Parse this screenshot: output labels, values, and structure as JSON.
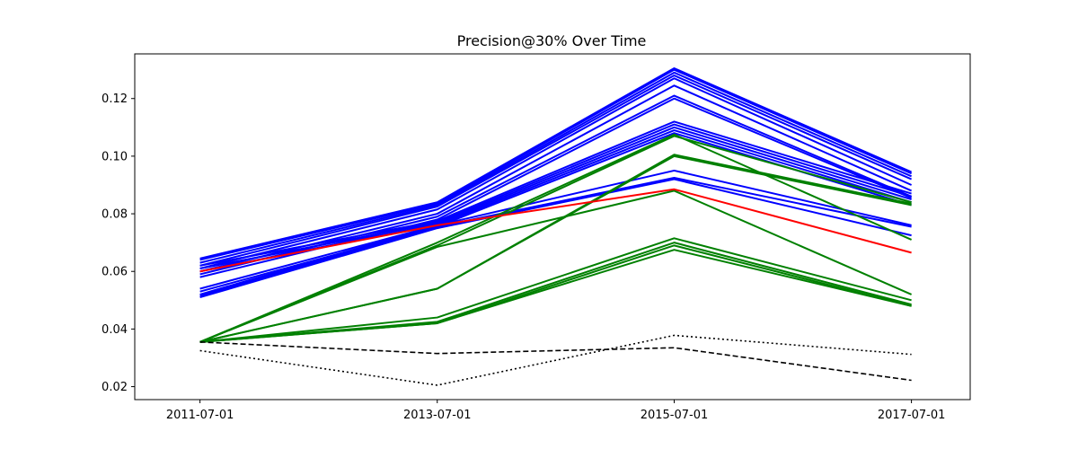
{
  "chart_data": {
    "type": "line",
    "title": "Precision@30% Over Time",
    "xlabel": "",
    "ylabel": "",
    "x": [
      "2011-07-01",
      "2013-07-01",
      "2015-07-01",
      "2017-07-01"
    ],
    "xlim": [
      "2010-12-12",
      "2017-12-29"
    ],
    "ylim": [
      0.0155,
      0.1355
    ],
    "yticks": [
      0.02,
      0.04,
      0.06,
      0.08,
      0.1,
      0.12
    ],
    "ytick_labels": [
      "0.02",
      "0.04",
      "0.06",
      "0.08",
      "0.10",
      "0.12"
    ],
    "grid": false,
    "legend": "none",
    "series": [
      {
        "color": "#0000ff",
        "style": "solid",
        "values": [
          0.0645,
          0.084,
          0.1305,
          0.0945
        ]
      },
      {
        "color": "#0000ff",
        "style": "solid",
        "values": [
          0.064,
          0.0835,
          0.13,
          0.094
        ]
      },
      {
        "color": "#0000ff",
        "style": "solid",
        "values": [
          0.063,
          0.083,
          0.129,
          0.093
        ]
      },
      {
        "color": "#0000ff",
        "style": "solid",
        "values": [
          0.062,
          0.0825,
          0.128,
          0.092
        ]
      },
      {
        "color": "#0000ff",
        "style": "solid",
        "values": [
          0.061,
          0.0815,
          0.127,
          0.09
        ]
      },
      {
        "color": "#0000ff",
        "style": "solid",
        "values": [
          0.06,
          0.08,
          0.1245,
          0.088
        ]
      },
      {
        "color": "#0000ff",
        "style": "solid",
        "values": [
          0.059,
          0.079,
          0.121,
          0.086
        ]
      },
      {
        "color": "#0000ff",
        "style": "solid",
        "values": [
          0.058,
          0.078,
          0.12,
          0.0855
        ]
      },
      {
        "color": "#0000ff",
        "style": "solid",
        "values": [
          0.062,
          0.0775,
          0.112,
          0.087
        ]
      },
      {
        "color": "#0000ff",
        "style": "solid",
        "values": [
          0.061,
          0.077,
          0.111,
          0.086
        ]
      },
      {
        "color": "#0000ff",
        "style": "solid",
        "values": [
          0.06,
          0.0765,
          0.11,
          0.085
        ]
      },
      {
        "color": "#0000ff",
        "style": "solid",
        "values": [
          0.054,
          0.076,
          0.109,
          0.084
        ]
      },
      {
        "color": "#0000ff",
        "style": "solid",
        "values": [
          0.053,
          0.0755,
          0.108,
          0.083
        ]
      },
      {
        "color": "#0000ff",
        "style": "solid",
        "values": [
          0.052,
          0.076,
          0.095,
          0.076
        ]
      },
      {
        "color": "#0000ff",
        "style": "solid",
        "values": [
          0.0515,
          0.0755,
          0.0925,
          0.0755
        ]
      },
      {
        "color": "#0000ff",
        "style": "solid",
        "values": [
          0.051,
          0.075,
          0.092,
          0.0725
        ]
      },
      {
        "color": "#008000",
        "style": "solid",
        "values": [
          0.0355,
          0.07,
          0.1075,
          0.071
        ]
      },
      {
        "color": "#008000",
        "style": "solid",
        "values": [
          0.0355,
          0.069,
          0.107,
          0.084
        ]
      },
      {
        "color": "#008000",
        "style": "solid",
        "values": [
          0.0355,
          0.0685,
          0.088,
          0.052
        ]
      },
      {
        "color": "#008000",
        "style": "solid",
        "values": [
          0.0355,
          0.054,
          0.1005,
          0.0835
        ]
      },
      {
        "color": "#008000",
        "style": "solid",
        "values": [
          0.0355,
          0.054,
          0.1,
          0.083
        ]
      },
      {
        "color": "#008000",
        "style": "solid",
        "values": [
          0.0355,
          0.044,
          0.0715,
          0.05
        ]
      },
      {
        "color": "#008000",
        "style": "solid",
        "values": [
          0.0355,
          0.0425,
          0.07,
          0.0485
        ]
      },
      {
        "color": "#008000",
        "style": "solid",
        "values": [
          0.0355,
          0.042,
          0.069,
          0.048
        ]
      },
      {
        "color": "#008000",
        "style": "solid",
        "values": [
          0.0355,
          0.042,
          0.0675,
          0.048
        ]
      },
      {
        "color": "#ff0000",
        "style": "solid",
        "values": [
          0.06,
          0.076,
          0.0885,
          0.0665
        ]
      },
      {
        "color": "#000000",
        "style": "dashed",
        "values": [
          0.0355,
          0.0315,
          0.0335,
          0.0222
        ]
      },
      {
        "color": "#000000",
        "style": "dotted",
        "values": [
          0.0325,
          0.0205,
          0.0378,
          0.0312
        ]
      }
    ]
  }
}
